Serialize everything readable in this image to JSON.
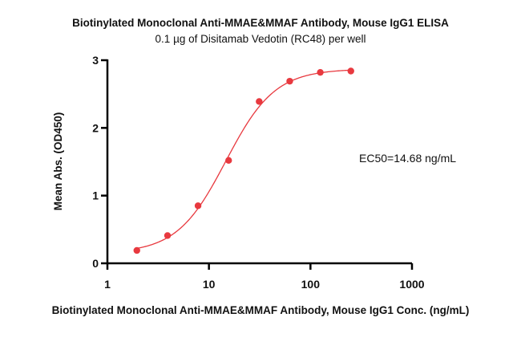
{
  "chart_data": {
    "type": "scatter",
    "title": "Biotinylated Monoclonal Anti-MMAE&MMAF Antibody, Mouse IgG1 ELISA",
    "subtitle": "0.1 µg of Disitamab Vedotin (RC48) per well",
    "xlabel": "Biotinylated Monoclonal Anti-MMAE&MMAF Antibody, Mouse IgG1 Conc. (ng/mL)",
    "ylabel": "Mean Abs. (OD450)",
    "xscale": "log",
    "xlim": [
      1,
      1000
    ],
    "ylim": [
      0,
      3
    ],
    "xticks": [
      "1",
      "10",
      "100",
      "1000"
    ],
    "yticks": [
      "0",
      "1",
      "2",
      "3"
    ],
    "grid": false,
    "color": "#e8393f",
    "annotation": "EC50=14.68 ng/mL",
    "series": [
      {
        "x": [
          1.95,
          3.91,
          7.81,
          15.63,
          31.25,
          62.5,
          125,
          250
        ],
        "y": [
          0.19,
          0.41,
          0.85,
          1.52,
          2.39,
          2.69,
          2.82,
          2.84
        ]
      }
    ]
  }
}
